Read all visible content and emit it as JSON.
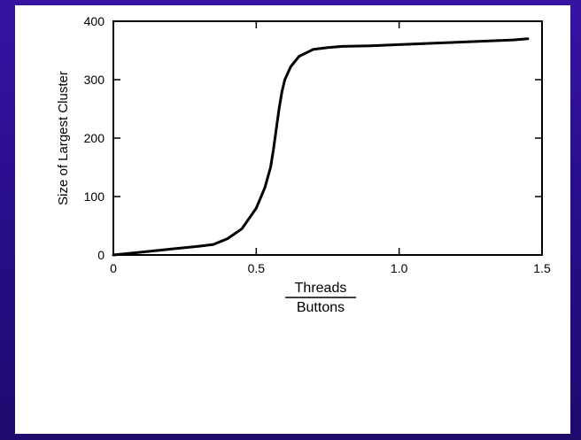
{
  "colors": {
    "background": "#2a0f8c",
    "panel": "#ffffff",
    "ink": "#000000"
  },
  "chart_data": {
    "type": "line",
    "ylabel": "Size of Largest Cluster",
    "xlabel_numerator": "Threads",
    "xlabel_denominator": "Buttons",
    "xlim": [
      0,
      1.5
    ],
    "ylim": [
      0,
      400
    ],
    "xticks": [
      0,
      0.5,
      1.0,
      1.5
    ],
    "xtick_labels": [
      "0",
      "0.5",
      "1.0",
      "1.5"
    ],
    "yticks": [
      0,
      100,
      200,
      300,
      400
    ],
    "ytick_labels": [
      "0",
      "100",
      "200",
      "300",
      "400"
    ],
    "grid": false,
    "legend": "none",
    "series": [
      {
        "x": [
          0,
          0.1,
          0.2,
          0.3,
          0.35,
          0.4,
          0.45,
          0.5,
          0.53,
          0.55,
          0.56,
          0.57,
          0.58,
          0.59,
          0.6,
          0.62,
          0.65,
          0.7,
          0.75,
          0.8,
          0.9,
          1.0,
          1.2,
          1.4,
          1.45
        ],
        "y": [
          0,
          5,
          10,
          15,
          18,
          28,
          45,
          80,
          115,
          150,
          180,
          215,
          250,
          280,
          300,
          322,
          340,
          352,
          355,
          357,
          358,
          360,
          364,
          368,
          370
        ]
      }
    ]
  }
}
